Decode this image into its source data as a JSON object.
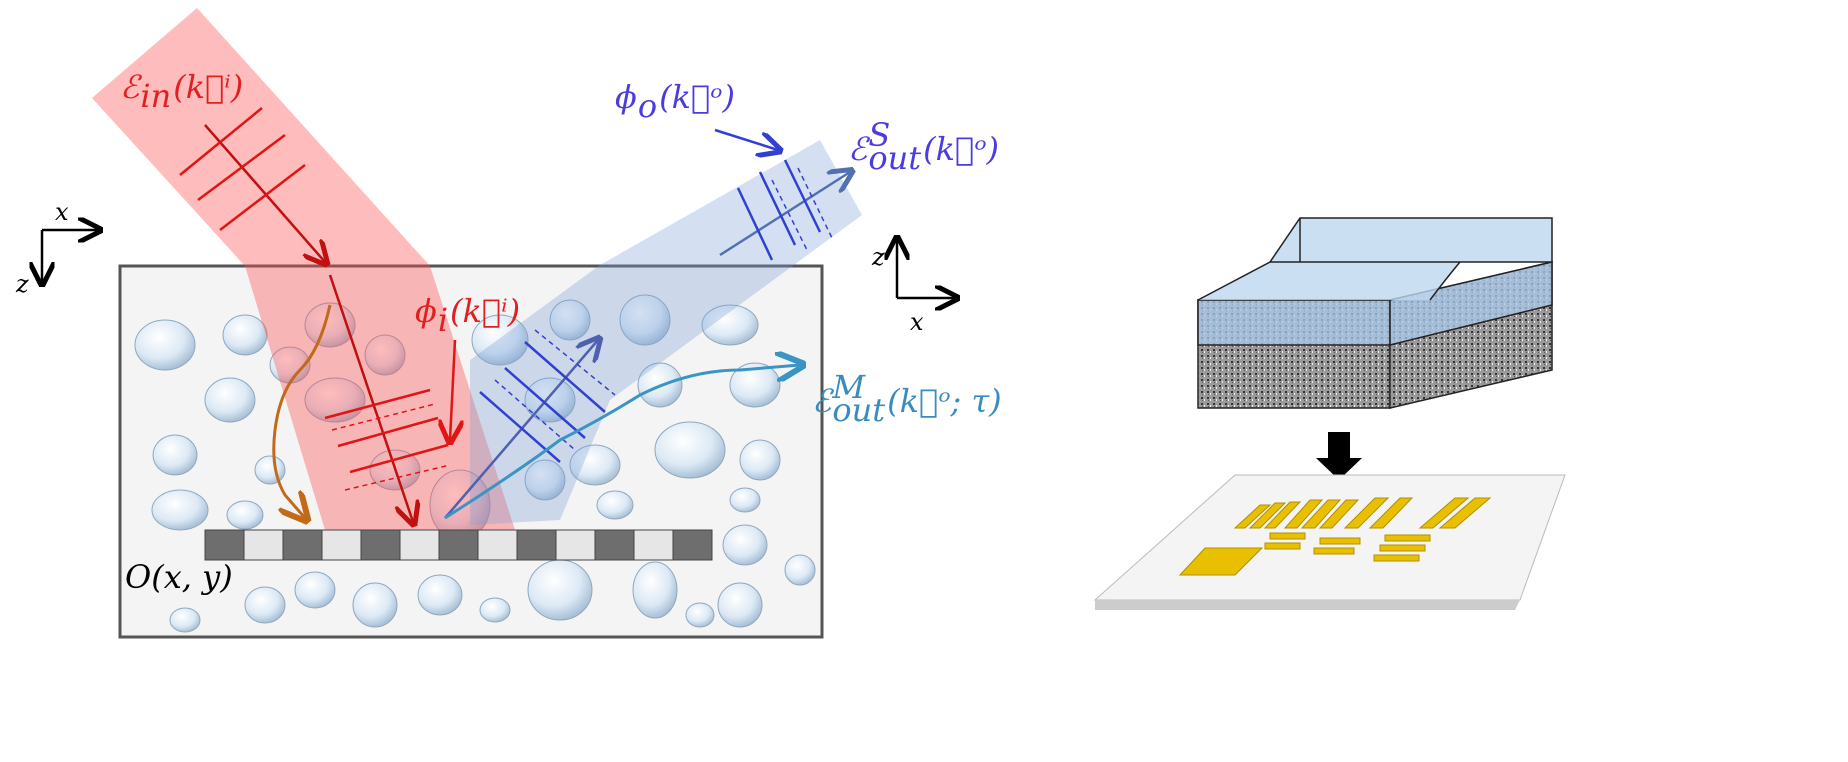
{
  "labels": {
    "e_in": {
      "main": "ℰ",
      "sub": "in",
      "tail": "(k⃗ⁱ)"
    },
    "phi_o": {
      "main": "ϕ",
      "sub": "o",
      "tail": "(k⃗ᵒ)"
    },
    "e_out_s": {
      "main": "ℰ",
      "sup": "S",
      "sub": "out",
      "tail": "(k⃗ᵒ)"
    },
    "phi_i": {
      "main": "ϕ",
      "sub": "i",
      "tail": "(k⃗ⁱ)"
    },
    "e_out_m": {
      "main": "ℰ",
      "sup": "M",
      "sub": "out",
      "tail": "(k⃗ᵒ; τ)"
    },
    "object": {
      "main": "O(x, y)"
    }
  },
  "axes": {
    "left": {
      "x": "x",
      "z": "z"
    },
    "right": {
      "x": "x",
      "z": "z"
    }
  }
}
